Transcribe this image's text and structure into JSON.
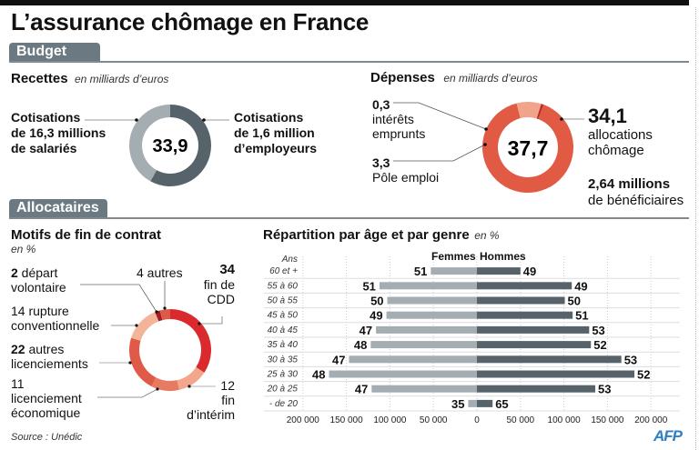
{
  "title": "L’assurance chômage en France",
  "sections": {
    "budget": "Budget",
    "allocataires": "Allocataires"
  },
  "recettes": {
    "heading": "Recettes",
    "unit": "en milliards d’euros",
    "total": "33,9",
    "left_label": [
      "Cotisations",
      "de 16,3 millions",
      "de salariés"
    ],
    "right_label": [
      "Cotisations",
      "de 1,6 million",
      "d’employeurs"
    ]
  },
  "depenses": {
    "heading": "Dépenses",
    "unit": "en milliards d’euros",
    "total": "37,7",
    "interets_value": "0,3",
    "interets_label": [
      "intérêts",
      "emprunts"
    ],
    "pole_value": "3,3",
    "pole_label": "Pôle emploi",
    "alloc_value": "34,1",
    "alloc_label": [
      "allocations",
      "chômage"
    ],
    "benef_value": "2,64 millions",
    "benef_label": "de bénéficiaires"
  },
  "motifs": {
    "heading": "Motifs de fin de contrat",
    "unit": "en %",
    "labels": {
      "depart_num": "2",
      "depart_text": " départ",
      "depart_text2": "volontaire",
      "rupture": [
        "14 rupture",
        "conventionnelle"
      ],
      "autres_lic_num": "22",
      "autres_lic_text": " autres",
      "autres_lic_text2": "licenciements",
      "eco": [
        "11",
        "licenciement",
        "économique"
      ],
      "autres": "4 autres",
      "cdd_num": "34",
      "cdd": [
        "fin de",
        "CDD"
      ],
      "interim": [
        "12",
        "fin",
        "d’intérim"
      ]
    }
  },
  "repartition": {
    "heading": "Répartition par âge et par genre",
    "unit": "en %",
    "ans_label": "Ans",
    "femmes_label": "Femmes",
    "hommes_label": "Hommes"
  },
  "source": "Source : Unédic",
  "logo": "AFP",
  "colors": {
    "recettes_salaries": "#a3adb2",
    "recettes_employeurs": "#57636a",
    "dep_alloc": "#e05a44",
    "dep_pole": "#f0a48c",
    "dep_interets": "#b8261e",
    "femmes": "#a3adb2",
    "hommes": "#57636a"
  },
  "chart_data": [
    {
      "type": "pie",
      "title": "Recettes (en milliards d’euros)",
      "total_label": "33,9",
      "slices": [
        {
          "label": "Cotisations de 1,6 million d’employeurs",
          "value": 58,
          "color": "#57636a"
        },
        {
          "label": "Cotisations de 16,3 millions de salariés",
          "value": 42,
          "color": "#a3adb2"
        }
      ]
    },
    {
      "type": "pie",
      "title": "Dépenses (en milliards d’euros)",
      "total_label": "37,7",
      "slices": [
        {
          "label": "allocations chômage",
          "value": 34.1,
          "color": "#e05a44"
        },
        {
          "label": "Pôle emploi",
          "value": 3.3,
          "color": "#f0a48c"
        },
        {
          "label": "intérêts emprunts",
          "value": 0.3,
          "color": "#b8261e"
        }
      ]
    },
    {
      "type": "pie",
      "title": "Motifs de fin de contrat (en %)",
      "slices": [
        {
          "label": "fin de CDD",
          "value": 34,
          "color": "#da2a2e"
        },
        {
          "label": "fin d’intérim",
          "value": 12,
          "color": "#f4a68c"
        },
        {
          "label": "licenciement économique",
          "value": 11,
          "color": "#e77a62"
        },
        {
          "label": "autres licenciements",
          "value": 22,
          "color": "#e05a48"
        },
        {
          "label": "rupture conventionnelle",
          "value": 14,
          "color": "#f4b49a"
        },
        {
          "label": "départ volontaire",
          "value": 2,
          "color": "#a31e22"
        },
        {
          "label": "autres",
          "value": 4,
          "color": "#dd5a48"
        }
      ]
    },
    {
      "type": "bar",
      "orientation": "horizontal-butterfly",
      "title": "Répartition par âge et par genre (en %)",
      "categories": [
        "60 et +",
        "55 à 60",
        "50 à 55",
        "45 à 50",
        "40 à 45",
        "35 à 40",
        "30 à 35",
        "25 à 30",
        "20 à 25",
        "- de 20"
      ],
      "series": [
        {
          "name": "Femmes",
          "values": [
            53000,
            112000,
            103000,
            104000,
            116000,
            122000,
            147000,
            170000,
            121000,
            10000
          ],
          "pct_labels": [
            "51",
            "51",
            "50",
            "49",
            "47",
            "48",
            "47",
            "48",
            "47",
            "35"
          ]
        },
        {
          "name": "Hommes",
          "values": [
            50000,
            109000,
            101000,
            110000,
            129000,
            131000,
            166000,
            181000,
            136000,
            18000
          ],
          "pct_labels": [
            "49",
            "49",
            "50",
            "51",
            "53",
            "52",
            "53",
            "52",
            "53",
            "65"
          ]
        }
      ],
      "xticks": [
        "200 000",
        "150 000",
        "100 000",
        "50 000",
        "0",
        "50 000",
        "100 000",
        "150 000",
        "200 000"
      ],
      "xlim": [
        -200000,
        200000
      ],
      "grid": true
    }
  ]
}
